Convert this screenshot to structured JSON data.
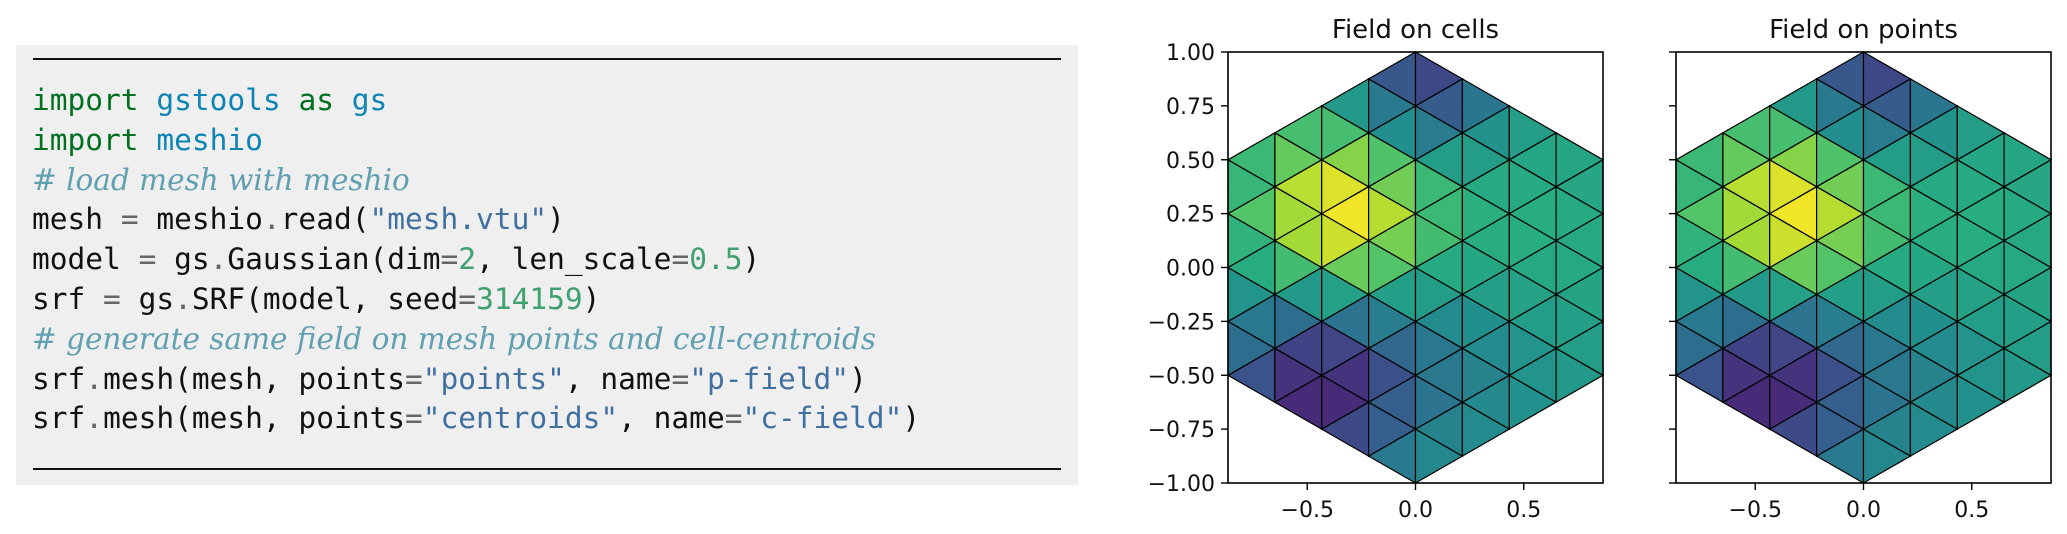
{
  "code": {
    "lines": [
      [
        {
          "t": "import",
          "c": "kw"
        },
        {
          "t": " "
        },
        {
          "t": "gstools",
          "c": "mod"
        },
        {
          "t": " "
        },
        {
          "t": "as",
          "c": "kw"
        },
        {
          "t": " "
        },
        {
          "t": "gs",
          "c": "mod"
        }
      ],
      [
        {
          "t": "import",
          "c": "kw"
        },
        {
          "t": " "
        },
        {
          "t": "meshio",
          "c": "mod"
        }
      ],
      [
        {
          "t": "# load mesh with meshio",
          "c": "com"
        }
      ],
      [
        {
          "t": "mesh "
        },
        {
          "t": "=",
          "c": "op"
        },
        {
          "t": " meshio"
        },
        {
          "t": ".",
          "c": "op"
        },
        {
          "t": "read("
        },
        {
          "t": "\"mesh.vtu\"",
          "c": "str"
        },
        {
          "t": ")"
        }
      ],
      [
        {
          "t": "model "
        },
        {
          "t": "=",
          "c": "op"
        },
        {
          "t": " gs"
        },
        {
          "t": ".",
          "c": "op"
        },
        {
          "t": "Gaussian(dim"
        },
        {
          "t": "=",
          "c": "op"
        },
        {
          "t": "2",
          "c": "num"
        },
        {
          "t": ", len_scale"
        },
        {
          "t": "=",
          "c": "op"
        },
        {
          "t": "0.5",
          "c": "num"
        },
        {
          "t": ")"
        }
      ],
      [
        {
          "t": "srf "
        },
        {
          "t": "=",
          "c": "op"
        },
        {
          "t": " gs"
        },
        {
          "t": ".",
          "c": "op"
        },
        {
          "t": "SRF(model, seed"
        },
        {
          "t": "=",
          "c": "op"
        },
        {
          "t": "314159",
          "c": "num"
        },
        {
          "t": ")"
        }
      ],
      [
        {
          "t": "# generate same field on mesh points and cell-centroids",
          "c": "com"
        }
      ],
      [
        {
          "t": "srf"
        },
        {
          "t": ".",
          "c": "op"
        },
        {
          "t": "mesh(mesh, points"
        },
        {
          "t": "=",
          "c": "op"
        },
        {
          "t": "\"points\"",
          "c": "str"
        },
        {
          "t": ", name"
        },
        {
          "t": "=",
          "c": "op"
        },
        {
          "t": "\"p-field\"",
          "c": "str"
        },
        {
          "t": ")"
        }
      ],
      [
        {
          "t": "srf"
        },
        {
          "t": ".",
          "c": "op"
        },
        {
          "t": "mesh(mesh, points"
        },
        {
          "t": "=",
          "c": "op"
        },
        {
          "t": "\"centroids\"",
          "c": "str"
        },
        {
          "t": ", name"
        },
        {
          "t": "=",
          "c": "op"
        },
        {
          "t": "\"c-field\"",
          "c": "str"
        },
        {
          "t": ")"
        }
      ]
    ]
  },
  "chart_data": [
    {
      "type": "heatmap",
      "title": "Field on cells",
      "xlim": [
        -0.866,
        0.866
      ],
      "ylim": [
        -1.0,
        1.0
      ],
      "xticks": [
        -0.5,
        0.0,
        0.5
      ],
      "xtick_labels": [
        "−0.5",
        "0.0",
        "0.5"
      ],
      "yticks": [
        1.0,
        0.75,
        0.5,
        0.25,
        0.0,
        -0.25,
        -0.5,
        -0.75,
        -1.0
      ],
      "ytick_labels": [
        "1.00",
        "0.75",
        "0.50",
        "0.25",
        "0.00",
        "−0.25",
        "−0.50",
        "−0.75",
        "−1.00"
      ],
      "show_ytick_labels": true,
      "colormap": "viridis",
      "mesh": "regular hexagon with circumradius 1, subdivided into 4 equilateral triangles per edge (96 cells)",
      "field_location": "cell-centroids"
    },
    {
      "type": "heatmap",
      "title": "Field on points",
      "xlim": [
        -0.866,
        0.866
      ],
      "ylim": [
        -1.0,
        1.0
      ],
      "xticks": [
        -0.5,
        0.0,
        0.5
      ],
      "xtick_labels": [
        "−0.5",
        "0.0",
        "0.5"
      ],
      "yticks": [
        1.0,
        0.75,
        0.5,
        0.25,
        0.0,
        -0.25,
        -0.5,
        -0.75,
        -1.0
      ],
      "ytick_labels": [],
      "show_ytick_labels": false,
      "colormap": "viridis",
      "mesh": "regular hexagon with circumradius 1, subdivided into 4 equilateral triangles per edge (96 cells)",
      "field_location": "mesh points (interpolated)"
    }
  ]
}
